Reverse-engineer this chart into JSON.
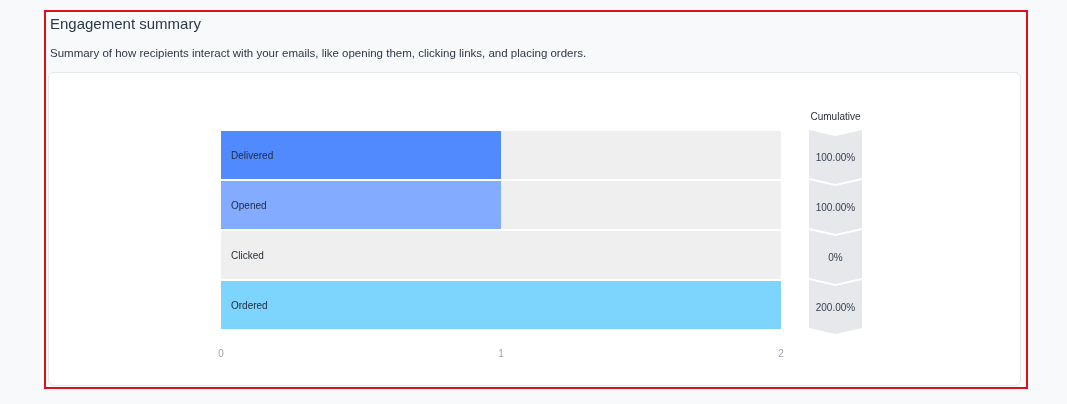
{
  "chart_data": {
    "type": "bar",
    "orientation": "horizontal",
    "stacked": true,
    "title": "Engagement summary",
    "subtitle": "Summary of how recipients interact with your emails, like opening them, clicking links, and placing orders.",
    "categories": [
      "Delivered",
      "Opened",
      "Clicked",
      "Ordered"
    ],
    "series": [
      {
        "colors": [
          "#508afe",
          "#83abff",
          null,
          "#7dd4fc"
        ],
        "values": [
          1,
          1,
          0,
          2
        ]
      },
      {
        "color": "#efefef",
        "values": [
          1,
          1,
          2,
          0
        ]
      }
    ],
    "xlim": [
      0,
      2
    ],
    "xticks": [
      0,
      1,
      2
    ],
    "annotations": [
      "Cumulative",
      "100.00%",
      "100.00%",
      "0%",
      "200.00%"
    ]
  }
}
